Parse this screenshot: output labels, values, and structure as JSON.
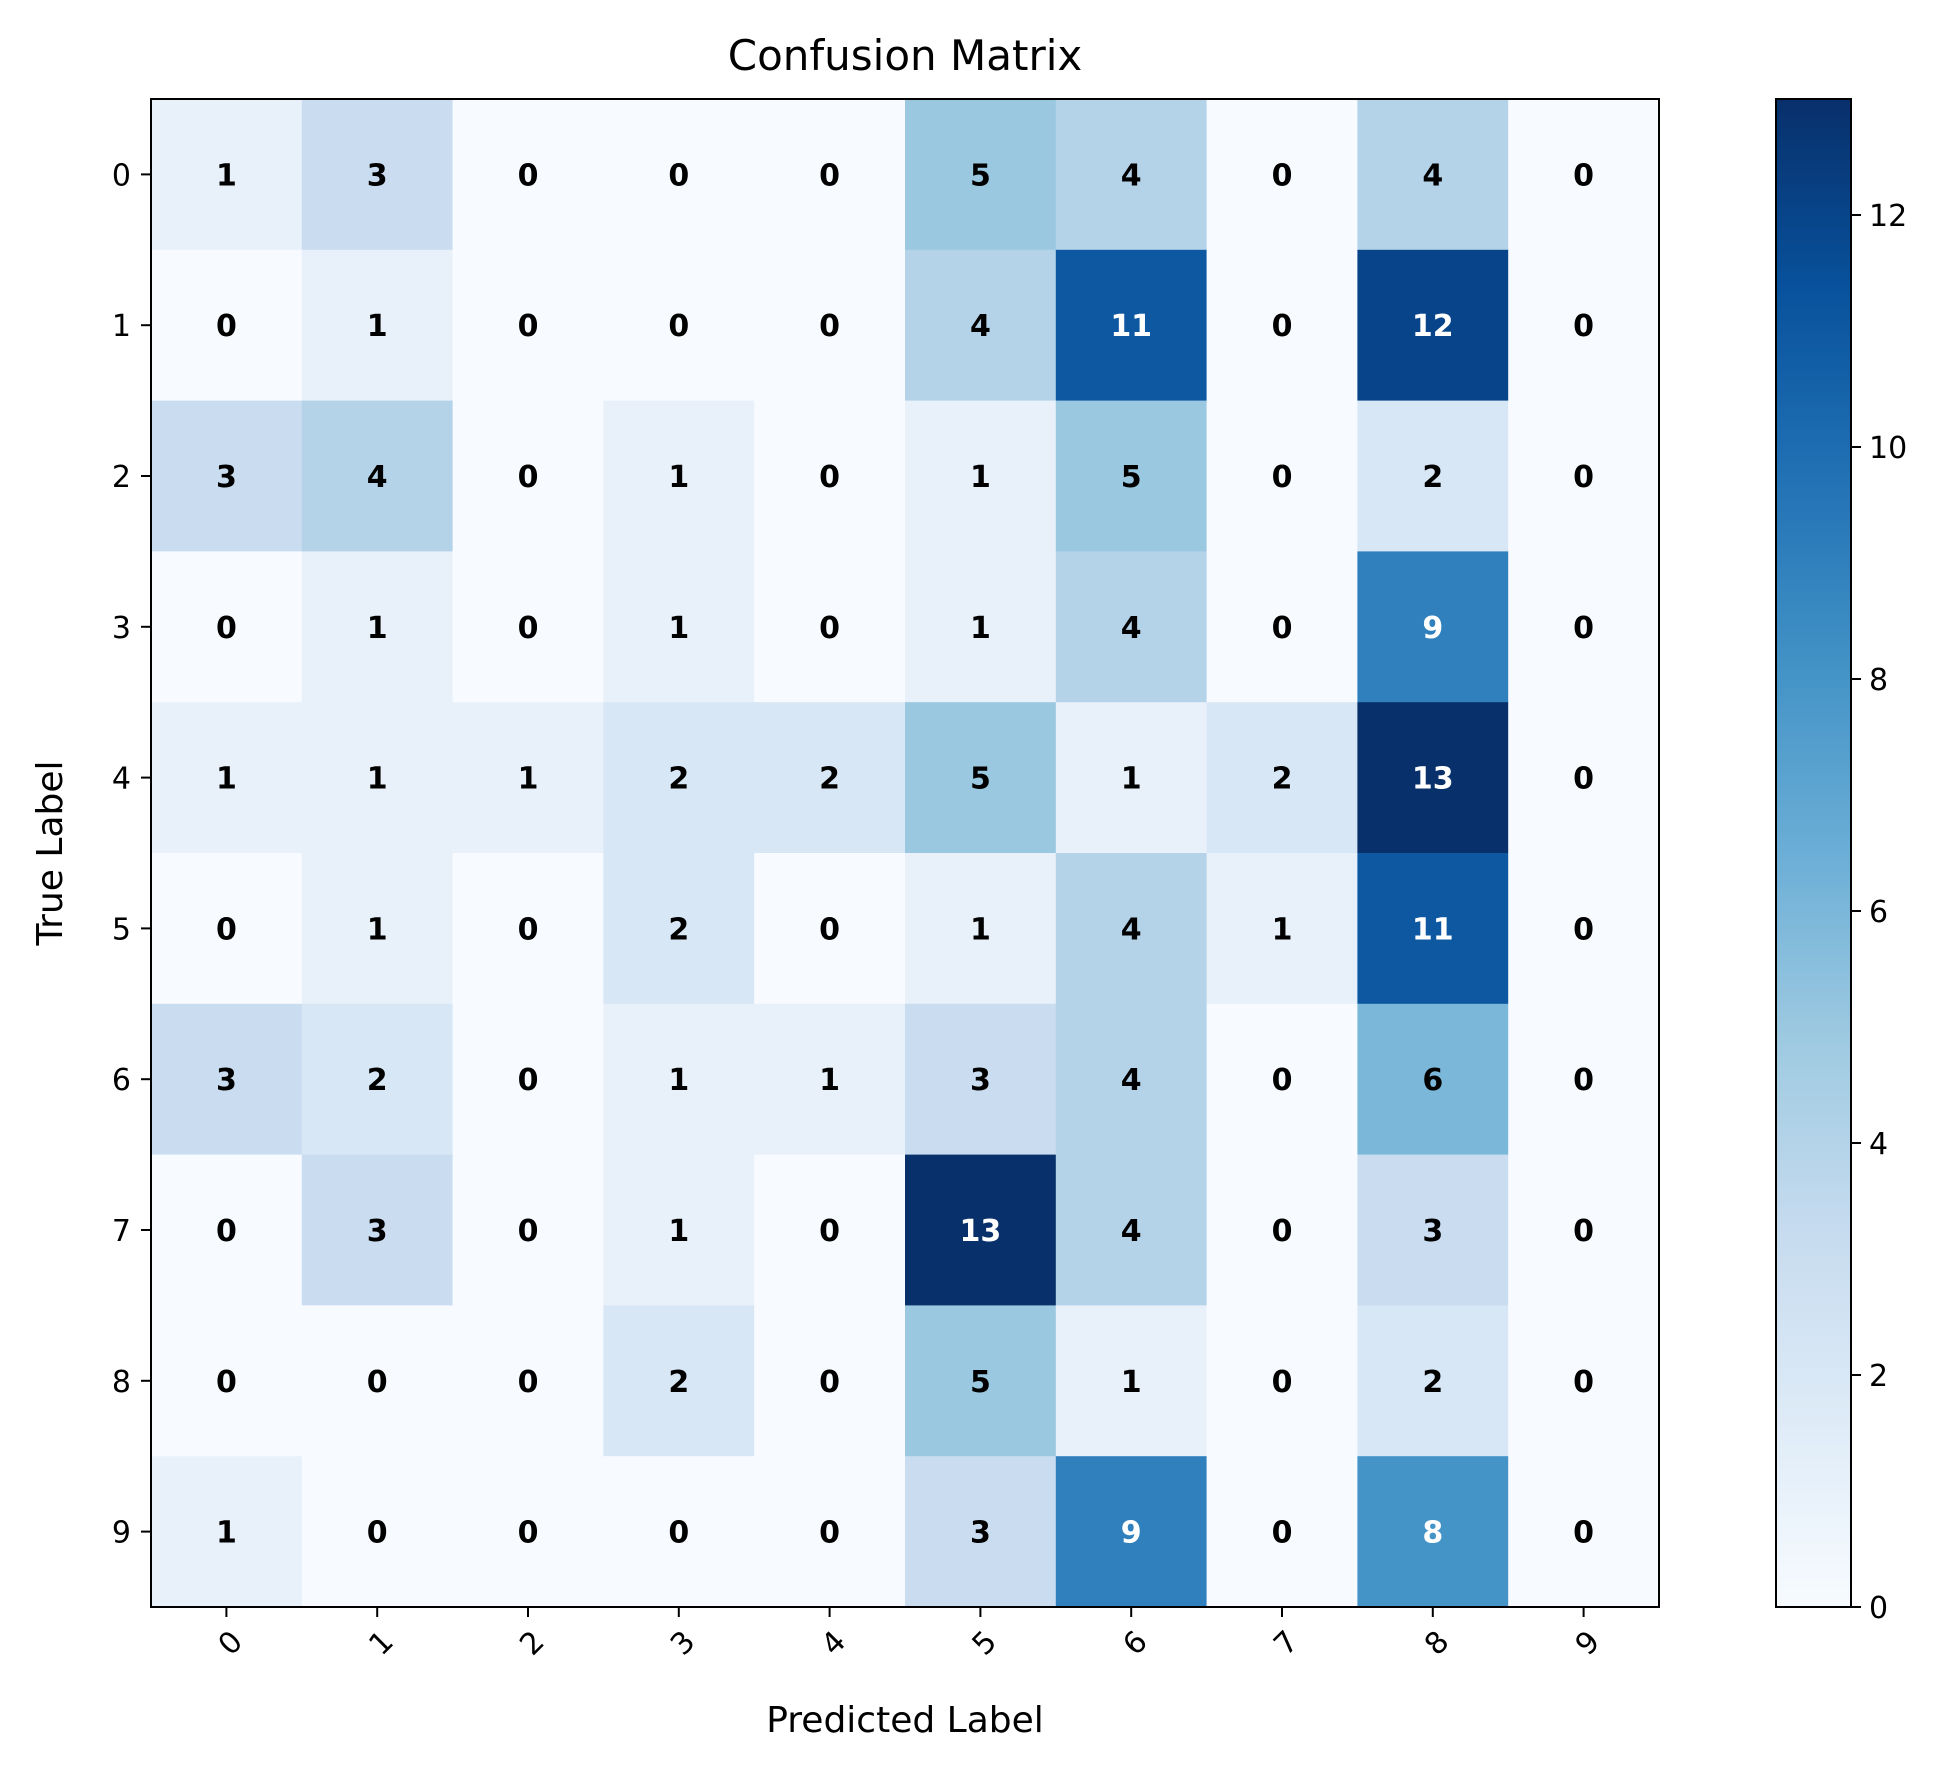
{
  "chart_data": {
    "type": "heatmap",
    "title": "Confusion Matrix",
    "xlabel": "Predicted Label",
    "ylabel": "True Label",
    "x_categories": [
      "0",
      "1",
      "2",
      "3",
      "4",
      "5",
      "6",
      "7",
      "8",
      "9"
    ],
    "y_categories": [
      "0",
      "1",
      "2",
      "3",
      "4",
      "5",
      "6",
      "7",
      "8",
      "9"
    ],
    "values": [
      [
        1,
        3,
        0,
        0,
        0,
        5,
        4,
        0,
        4,
        0
      ],
      [
        0,
        1,
        0,
        0,
        0,
        4,
        11,
        0,
        12,
        0
      ],
      [
        3,
        4,
        0,
        1,
        0,
        1,
        5,
        0,
        2,
        0
      ],
      [
        0,
        1,
        0,
        1,
        0,
        1,
        4,
        0,
        9,
        0
      ],
      [
        1,
        1,
        1,
        2,
        2,
        5,
        1,
        2,
        13,
        0
      ],
      [
        0,
        1,
        0,
        2,
        0,
        1,
        4,
        1,
        11,
        0
      ],
      [
        3,
        2,
        0,
        1,
        1,
        3,
        4,
        0,
        6,
        0
      ],
      [
        0,
        3,
        0,
        1,
        0,
        13,
        4,
        0,
        3,
        0
      ],
      [
        0,
        0,
        0,
        2,
        0,
        5,
        1,
        0,
        2,
        0
      ],
      [
        1,
        0,
        0,
        0,
        0,
        3,
        9,
        0,
        8,
        0
      ]
    ],
    "colormap": "Blues",
    "colorbar": {
      "range": [
        0,
        13
      ],
      "ticks": [
        0,
        2,
        4,
        6,
        8,
        10,
        12
      ]
    },
    "x_tick_rotation": 45,
    "grid": false
  }
}
